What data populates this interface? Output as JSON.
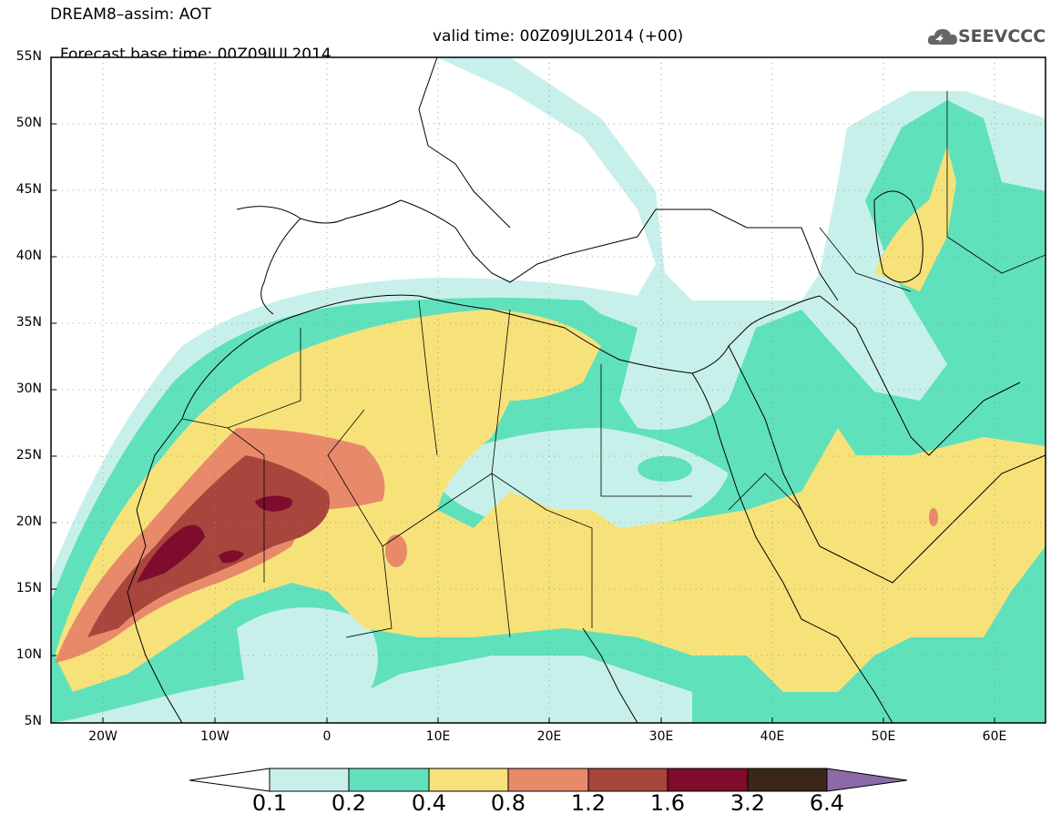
{
  "header": {
    "title": "DREAM8–assim: AOT",
    "base_time": "Forecast base time: 00Z09JUL2014",
    "valid_time": "valid time: 00Z09JUL2014 (+00)",
    "logo_text": "SEEVCCC"
  },
  "axes": {
    "lat_labels": [
      "55N",
      "50N",
      "45N",
      "40N",
      "35N",
      "30N",
      "25N",
      "20N",
      "15N",
      "10N",
      "5N"
    ],
    "lon_labels": [
      "20W",
      "10W",
      "0",
      "10E",
      "20E",
      "30E",
      "40E",
      "50E",
      "60E"
    ]
  },
  "colorbar": {
    "labels": [
      "0.1",
      "0.2",
      "0.4",
      "0.8",
      "1.2",
      "1.6",
      "3.2",
      "6.4"
    ],
    "colors": [
      "#c8f0ea",
      "#5fe1bc",
      "#f7e27a",
      "#e8896a",
      "#a8453c",
      "#7f0c2c",
      "#3b2719",
      "#8c6aa8"
    ]
  },
  "map": {
    "levels_colors": {
      "0.1": "#c8f0ea",
      "0.2": "#5fe1bc",
      "0.4": "#f7e27a",
      "0.8": "#e8896a",
      "1.2": "#a8453c",
      "1.6": "#7f0c2c"
    }
  }
}
